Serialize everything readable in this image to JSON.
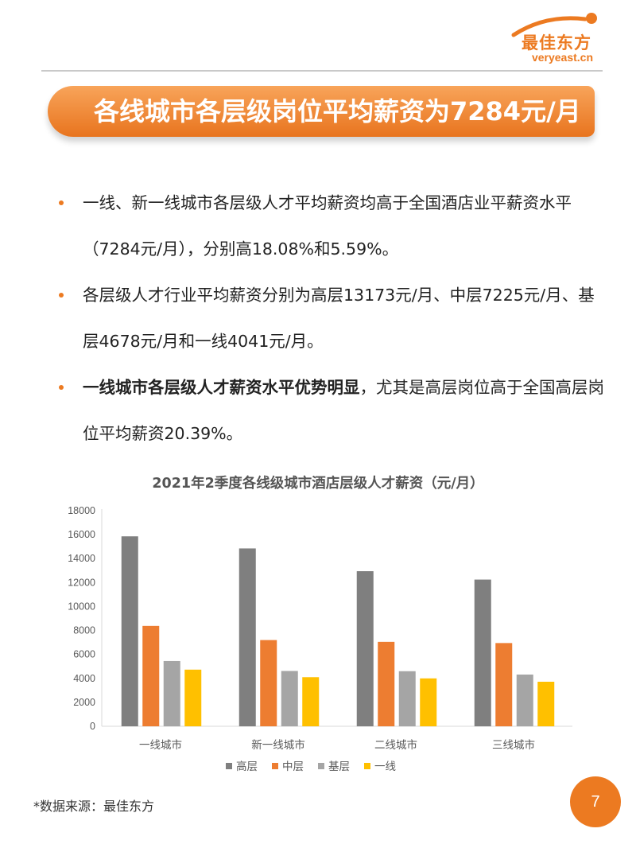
{
  "logo": {
    "cn": "最佳东方",
    "en": "veryeast.cn"
  },
  "header": {
    "title": "各线城市各层级岗位平均薪资为7284元/月"
  },
  "bullets": [
    {
      "text": "一线、新一线城市各层级人才平均薪资均高于全国酒店业平薪资水平（7284元/月），分别高18.08%和5.59%。"
    },
    {
      "text": "各层级人才行业平均薪资分别为高层13173元/月、中层7225元/月、基层4678元/月和一线4041元/月。"
    },
    {
      "bold": "一线城市各层级人才薪资水平优势明显",
      "text": "，尤其是高层岗位高于全国高层岗位平均薪资20.39%。"
    }
  ],
  "chart_data": {
    "type": "bar",
    "title": "2021年2季度各线级城市酒店层级人才薪资（元/月）",
    "categories": [
      "一线城市",
      "新一线城市",
      "二线城市",
      "三线城市"
    ],
    "series": [
      {
        "name": "高层",
        "color": "#7f7f7f",
        "values": [
          15860,
          14850,
          12950,
          12250
        ]
      },
      {
        "name": "中层",
        "color": "#ed7d31",
        "values": [
          8380,
          7200,
          7050,
          6950
        ]
      },
      {
        "name": "基层",
        "color": "#a5a5a5",
        "values": [
          5450,
          4620,
          4600,
          4320
        ]
      },
      {
        "name": "一线",
        "color": "#ffc000",
        "values": [
          4730,
          4100,
          4000,
          3720
        ]
      }
    ],
    "ylim": [
      0,
      18000
    ],
    "yticks": [
      0,
      2000,
      4000,
      6000,
      8000,
      10000,
      12000,
      14000,
      16000,
      18000
    ],
    "grid": false,
    "legend": "bottom"
  },
  "footer": {
    "source": "*数据来源：最佳东方",
    "page": "7"
  }
}
